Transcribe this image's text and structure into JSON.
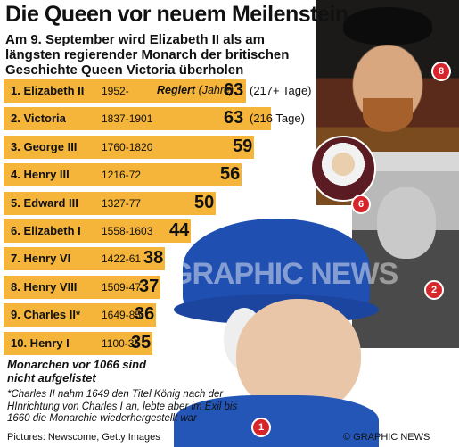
{
  "title": "Die Queen vor neuem Meilenstein",
  "subtitle": "Am 9. September wird Elizabeth II als am längsten regierender Monarch der britischen Geschichte Queen Victoria überholen",
  "reign_legend": "Regiert",
  "reign_legend_unit": "(Jahre)",
  "bar_color": "#f5b53a",
  "rows": [
    {
      "label": "1. Elizabeth II",
      "years": "1952-",
      "value": "63",
      "note": "(217+ Tage)",
      "reign_years": 63
    },
    {
      "label": "2. Victoria",
      "years": "1837-1901",
      "value": "63",
      "note": "(216 Tage)",
      "reign_years": 63
    },
    {
      "label": "3. George III",
      "years": "1760-1820",
      "value": "59",
      "note": "",
      "reign_years": 59
    },
    {
      "label": "4. Henry III",
      "years": "1216-72",
      "value": "56",
      "note": "",
      "reign_years": 56
    },
    {
      "label": "5. Edward III",
      "years": "1327-77",
      "value": "50",
      "note": "",
      "reign_years": 50
    },
    {
      "label": "6. Elizabeth I",
      "years": "1558-1603",
      "value": "44",
      "note": "",
      "reign_years": 44
    },
    {
      "label": "7. Henry VI",
      "years": "1422-61",
      "value": "38",
      "note": "",
      "reign_years": 38
    },
    {
      "label": "8. Henry VIII",
      "years": "1509-47",
      "value": "37",
      "note": "",
      "reign_years": 37
    },
    {
      "label": "9. Charles II*",
      "years": "1649-85",
      "value": "36",
      "note": "",
      "reign_years": 36
    },
    {
      "label": "10. Henry I",
      "years": "1100-35",
      "value": "35",
      "note": "",
      "reign_years": 35
    }
  ],
  "footnote_main": "Monarchen vor 1066 sind nicht aufgelistet",
  "footnote_asterisk": "*Charles II nahm 1649 den Titel König nach der HInrichtung von Charles I an, lebte aber im Exil bis 1660 die Monarchie wiederhergestellt war",
  "credits": "Pictures: Newscome, Getty Images",
  "brand": "© GRAPHIC NEWS",
  "badges": {
    "elizabeth2": "1",
    "victoria": "2",
    "elizabeth1": "6",
    "henry8": "8"
  },
  "watermark_logo": "GN",
  "watermark_text": "GRAPHIC NEWS"
}
